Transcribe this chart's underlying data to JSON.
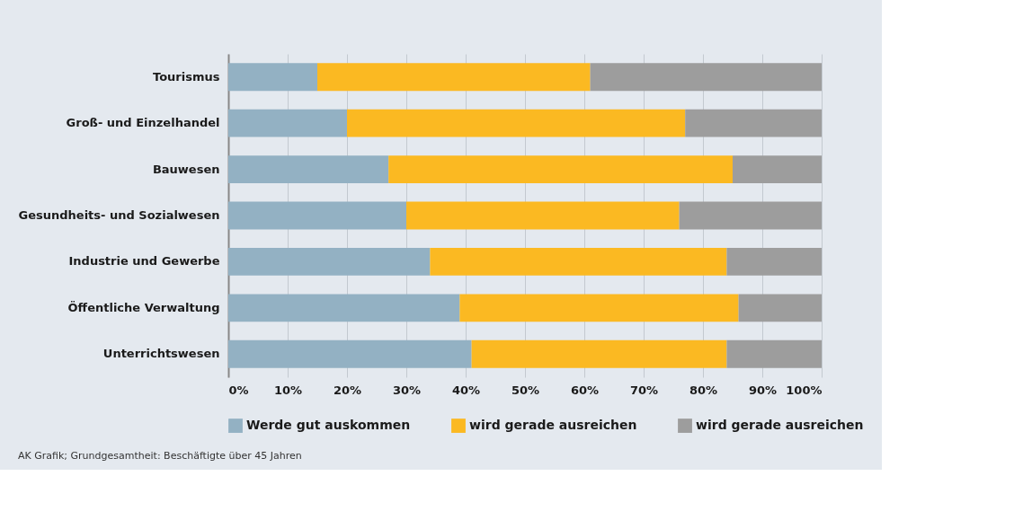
{
  "chart_data": {
    "type": "bar",
    "orientation": "horizontal",
    "stacked": true,
    "grid": "x",
    "legend": "bottom",
    "categories": [
      "Tourismus",
      "Groß- und Einzelhandel",
      "Bauwesen",
      "Gesundheits- und Sozialwesen",
      "Industrie und Gewerbe",
      "Öffentliche Verwaltung",
      "Unterrichtswesen"
    ],
    "series": [
      {
        "name": "Werde gut auskommen",
        "color": "#93b1c3",
        "values": [
          15,
          20,
          27,
          30,
          34,
          39,
          41
        ]
      },
      {
        "name": "wird gerade ausreichen",
        "color": "#fbb922",
        "values": [
          46,
          57,
          58,
          46,
          50,
          47,
          43
        ]
      },
      {
        "name": "wird gerade ausreichen",
        "color": "#9d9d9d",
        "values": [
          39,
          23,
          15,
          24,
          16,
          14,
          16
        ]
      }
    ],
    "xlim": [
      0,
      100
    ],
    "xticks": [
      {
        "value": 0,
        "label": "0%"
      },
      {
        "value": 10,
        "label": "10%"
      },
      {
        "value": 20,
        "label": "20%"
      },
      {
        "value": 30,
        "label": "30%"
      },
      {
        "value": 40,
        "label": "40%"
      },
      {
        "value": 50,
        "label": "50%"
      },
      {
        "value": 60,
        "label": "60%"
      },
      {
        "value": 70,
        "label": "70%"
      },
      {
        "value": 80,
        "label": "80%"
      },
      {
        "value": 90,
        "label": "90%"
      },
      {
        "value": 100,
        "label": "100%"
      }
    ],
    "annotations": [
      "AK Grafik; Grundgesamtheit: Beschäftigte über 45 Jahren"
    ]
  }
}
